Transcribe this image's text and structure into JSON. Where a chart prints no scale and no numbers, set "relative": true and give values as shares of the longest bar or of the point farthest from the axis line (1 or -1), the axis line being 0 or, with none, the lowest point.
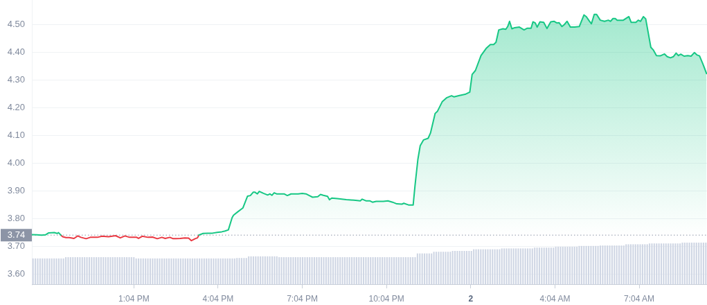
{
  "chart_data": [
    {
      "type": "area",
      "xlim": [
        "--01-01T09:26",
        "--01-02T09:29"
      ],
      "ylim": [
        3.56,
        4.59
      ],
      "xticks": [
        {
          "value": "--01-01T13:04",
          "label": "1:04 PM"
        },
        {
          "value": "--01-01T16:04",
          "label": "4:04 PM"
        },
        {
          "value": "--01-01T19:04",
          "label": "7:04 PM"
        },
        {
          "value": "--01-01T22:04",
          "label": "10:04 PM"
        },
        {
          "value": "--01-02T01:04",
          "label": "2"
        },
        {
          "value": "--01-02T04:04",
          "label": "4:04 AM"
        },
        {
          "value": "--01-02T07:04",
          "label": "7:04 AM"
        }
      ],
      "yticks": [
        {
          "value": 3.6,
          "label": "3.60"
        },
        {
          "value": 3.7,
          "label": "3.70"
        },
        {
          "value": 3.8,
          "label": "3.80"
        },
        {
          "value": 3.9,
          "label": "3.90"
        },
        {
          "value": 4.0,
          "label": "4.00"
        },
        {
          "value": 4.1,
          "label": "4.10"
        },
        {
          "value": 4.2,
          "label": "4.20"
        },
        {
          "value": 4.3,
          "label": "4.30"
        },
        {
          "value": 4.4,
          "label": "4.40"
        },
        {
          "value": 4.5,
          "label": "4.50"
        }
      ],
      "grid": "y",
      "ref_lines": [
        {
          "axis": "y",
          "value": 3.74,
          "label": "3.74",
          "color": "#8c94a6",
          "line_style": "dotted"
        }
      ],
      "series": [
        {
          "color": "#16c784",
          "x": [
            "--01-01T09:26",
            "--01-01T09:37",
            "--01-01T09:47",
            "--01-01T09:55",
            "--01-01T10:02",
            "--01-01T10:14",
            "--01-01T10:20",
            "--01-01T10:23",
            "--01-01T10:28",
            "--01-01T12:54",
            "--01-01T15:23",
            "--01-01T15:32",
            "--01-01T15:42",
            "--01-01T15:52",
            "--01-01T16:02",
            "--01-01T16:12",
            "--01-01T16:19",
            "--01-01T16:26",
            "--01-01T16:34",
            "--01-01T16:37",
            "--01-01T16:46",
            "--01-01T16:57",
            "--01-01T17:07",
            "--01-01T17:13",
            "--01-01T17:19",
            "--01-01T17:23",
            "--01-01T17:28",
            "--01-01T17:32",
            "--01-01T17:41",
            "--01-01T17:50",
            "--01-01T17:55",
            "--01-01T17:59",
            "--01-01T18:04",
            "--01-01T18:09",
            "--01-01T18:15",
            "--01-01T18:25",
            "--01-01T18:32",
            "--01-01T18:40",
            "--01-01T18:55",
            "--01-01T19:04",
            "--01-01T19:12",
            "--01-01T19:19",
            "--01-01T19:26",
            "--01-01T19:37",
            "--01-01T19:43",
            "--01-01T19:49",
            "--01-01T19:58",
            "--01-01T20:02",
            "--01-01T20:07",
            "--01-01T20:19",
            "--01-01T20:38",
            "--01-01T20:58",
            "--01-01T21:08",
            "--01-01T21:12",
            "--01-01T21:20",
            "--01-01T21:28",
            "--01-01T21:34",
            "--01-01T21:42",
            "--01-01T21:57",
            "--01-01T22:07",
            "--01-01T22:17",
            "--01-01T22:26",
            "--01-01T22:37",
            "--01-01T22:41",
            "--01-01T22:51",
            "--01-01T23:01",
            "--01-01T23:05",
            "--01-01T23:11",
            "--01-01T23:16",
            "--01-01T23:23",
            "--01-01T23:33",
            "--01-01T23:38",
            "--01-01T23:48",
            "--01-01T23:53",
            "--01-02T00:03",
            "--01-02T00:13",
            "--01-02T00:23",
            "--01-02T00:28",
            "--01-02T00:40",
            "--01-02T00:52",
            "--01-02T01:02",
            "--01-02T01:07",
            "--01-02T01:14",
            "--01-02T01:26",
            "--01-02T01:37",
            "--01-02T01:46",
            "--01-02T01:53",
            "--01-02T01:58",
            "--01-02T02:04",
            "--01-02T02:13",
            "--01-02T02:19",
            "--01-02T02:23",
            "--01-02T02:27",
            "--01-02T02:32",
            "--01-02T02:38",
            "--01-02T02:48",
            "--01-02T02:58",
            "--01-02T03:05",
            "--01-02T03:13",
            "--01-02T03:17",
            "--01-02T03:22",
            "--01-02T03:26",
            "--01-02T03:32",
            "--01-02T03:40",
            "--01-02T03:47",
            "--01-02T03:55",
            "--01-02T04:02",
            "--01-02T04:08",
            "--01-02T04:13",
            "--01-02T04:19",
            "--01-02T04:24",
            "--01-02T04:30",
            "--01-02T04:37",
            "--01-02T04:46",
            "--01-02T04:56",
            "--01-02T05:06",
            "--01-02T05:11",
            "--01-02T05:17",
            "--01-02T05:22",
            "--01-02T05:28",
            "--01-02T05:33",
            "--01-02T05:41",
            "--01-02T05:50",
            "--01-02T05:58",
            "--01-02T06:03",
            "--01-02T06:08",
            "--01-02T06:13",
            "--01-02T06:17",
            "--01-02T06:30",
            "--01-02T06:42",
            "--01-02T06:47",
            "--01-02T06:57",
            "--01-02T07:02",
            "--01-02T07:07",
            "--01-02T07:13",
            "--01-02T07:18",
            "--01-02T07:29",
            "--01-02T07:34",
            "--01-02T07:41",
            "--01-02T07:49",
            "--01-02T07:58",
            "--01-02T08:04",
            "--01-02T08:11",
            "--01-02T08:17",
            "--01-02T08:23",
            "--01-02T08:28",
            "--01-02T08:33",
            "--01-02T08:40",
            "--01-02T08:48",
            "--01-02T08:55",
            "--01-02T09:02",
            "--01-02T09:08",
            "--01-02T09:13",
            "--01-02T09:20",
            "--01-02T09:28"
          ],
          "values": [
            3.742,
            3.741,
            3.74,
            3.741,
            3.748,
            3.749,
            3.746,
            3.749,
            3.74,
            null,
            3.74,
            3.746,
            3.747,
            3.747,
            3.75,
            3.752,
            3.755,
            3.759,
            3.803,
            3.812,
            3.824,
            3.838,
            3.881,
            3.883,
            3.895,
            3.895,
            3.889,
            3.898,
            3.891,
            3.885,
            3.889,
            3.884,
            3.893,
            3.889,
            3.889,
            3.889,
            3.883,
            3.889,
            3.889,
            3.891,
            3.889,
            3.883,
            3.877,
            3.879,
            3.887,
            3.884,
            3.88,
            3.868,
            3.874,
            3.872,
            3.868,
            3.866,
            3.864,
            3.87,
            3.864,
            3.864,
            3.859,
            3.862,
            3.862,
            3.864,
            3.859,
            3.853,
            3.852,
            3.855,
            3.849,
            3.849,
            3.92,
            4.013,
            4.063,
            4.084,
            4.09,
            4.109,
            4.18,
            4.188,
            4.222,
            4.237,
            4.244,
            4.24,
            4.245,
            4.249,
            4.257,
            4.321,
            4.335,
            4.389,
            4.415,
            4.429,
            4.429,
            4.437,
            4.482,
            4.486,
            4.484,
            4.494,
            4.513,
            4.486,
            4.49,
            4.492,
            4.482,
            4.488,
            4.488,
            4.511,
            4.507,
            4.492,
            4.511,
            4.509,
            4.487,
            4.511,
            4.513,
            4.507,
            4.508,
            4.494,
            4.501,
            4.513,
            4.492,
            4.492,
            4.494,
            4.536,
            4.53,
            4.515,
            4.504,
            4.538,
            4.538,
            4.517,
            4.513,
            4.517,
            4.513,
            4.523,
            4.523,
            4.517,
            4.517,
            4.53,
            4.509,
            4.509,
            4.517,
            4.513,
            4.53,
            4.522,
            4.419,
            4.41,
            4.389,
            4.388,
            4.395,
            4.385,
            4.381,
            4.385,
            4.398,
            4.389,
            4.394,
            4.387,
            4.389,
            4.387,
            4.4,
            4.391,
            4.388,
            4.36,
            4.324
          ]
        },
        {
          "type": "line",
          "color": "#ea3943",
          "x": [
            "--01-01T10:28",
            "--01-01T10:32",
            "--01-01T10:39",
            "--01-01T10:46",
            "--01-01T10:56",
            "--01-01T11:04",
            "--01-01T11:11",
            "--01-01T11:22",
            "--01-01T11:31",
            "--01-01T11:46",
            "--01-01T11:56",
            "--01-01T12:10",
            "--01-01T12:25",
            "--01-01T12:35",
            "--01-01T12:45",
            "--01-01T12:55",
            "--01-01T13:10",
            "--01-01T13:14",
            "--01-01T13:22",
            "--01-01T13:34",
            "--01-01T13:44",
            "--01-01T13:54",
            "--01-01T14:04",
            "--01-01T14:11",
            "--01-01T14:21",
            "--01-01T14:28",
            "--01-01T14:43",
            "--01-01T14:53",
            "--01-01T15:01",
            "--01-01T15:07",
            "--01-01T15:15",
            "--01-01T15:20",
            "--01-01T15:23"
          ],
          "values": [
            3.74,
            3.734,
            3.731,
            3.731,
            3.728,
            3.737,
            3.732,
            3.727,
            3.732,
            3.732,
            3.736,
            3.734,
            3.738,
            3.73,
            3.737,
            3.732,
            3.732,
            3.728,
            3.736,
            3.732,
            3.733,
            3.727,
            3.732,
            3.728,
            3.732,
            3.727,
            3.728,
            3.73,
            3.729,
            3.72,
            3.727,
            3.73,
            3.74
          ]
        }
      ]
    },
    {
      "type": "bar",
      "relative": true,
      "tick_labels": false,
      "color": "#cfd6e4",
      "categories": [
        null,
        null,
        null,
        null,
        null,
        null,
        null,
        null,
        null,
        null,
        null,
        null,
        null,
        null,
        null,
        null,
        null,
        null,
        null,
        null,
        null,
        null,
        null,
        null,
        null,
        null,
        null,
        null,
        null,
        null,
        null,
        null,
        null,
        null,
        null,
        null,
        null,
        null,
        null,
        null,
        null,
        null,
        null,
        null,
        null,
        null,
        null,
        null,
        null,
        null,
        null,
        null,
        null,
        null,
        null,
        null,
        null,
        null,
        null,
        null,
        null,
        null,
        null,
        null,
        null,
        null,
        null,
        null,
        null,
        null,
        null,
        null,
        null,
        null,
        null,
        null,
        null,
        null,
        null,
        null,
        null,
        null,
        null,
        null,
        null,
        null,
        null,
        null,
        null,
        null,
        null,
        null,
        null,
        null,
        null,
        null,
        null,
        null,
        null,
        null,
        null,
        null,
        null,
        null,
        null,
        null,
        null,
        null,
        null,
        null,
        null,
        null,
        null,
        null,
        null,
        null,
        null,
        null,
        null,
        null,
        null,
        null,
        null,
        null,
        null,
        null,
        null,
        null,
        null,
        null,
        null,
        null,
        null,
        null,
        null,
        null,
        null,
        null,
        null,
        null,
        null,
        null,
        null,
        null,
        null,
        null,
        null,
        null,
        null,
        null,
        null,
        null,
        null,
        null,
        null,
        null,
        null,
        null,
        null,
        null,
        null,
        null,
        null,
        null,
        null,
        null,
        null,
        null,
        null,
        null,
        null,
        null,
        null,
        null,
        null,
        null,
        null,
        null,
        null,
        null,
        null,
        null,
        null,
        null,
        null,
        null,
        null,
        null,
        null,
        null,
        null,
        null,
        null,
        null,
        null,
        null,
        null,
        null,
        null,
        null,
        null,
        null,
        null,
        null,
        null,
        null,
        null,
        null,
        null,
        null,
        null,
        null,
        null,
        null,
        null,
        null,
        null,
        null,
        null,
        null,
        null,
        null,
        null,
        null,
        null,
        null,
        null,
        null,
        null,
        null,
        null,
        null,
        null,
        null,
        null,
        null,
        null,
        null,
        null,
        null,
        null,
        null,
        null,
        null,
        null,
        null,
        null,
        null,
        null,
        null,
        null,
        null,
        null,
        null,
        null,
        null,
        null,
        null,
        null,
        null,
        null,
        null,
        null,
        null,
        null,
        null,
        null,
        null,
        null,
        null,
        null,
        null,
        null,
        null,
        null,
        null,
        null,
        null,
        null,
        null,
        null,
        null,
        null,
        null,
        null,
        null,
        null,
        null
      ],
      "values": [
        0.62,
        0.62,
        0.62,
        0.62,
        0.62,
        0.62,
        0.62,
        0.62,
        0.62,
        0.62,
        0.62,
        0.62,
        0.62,
        0.62,
        0.65,
        0.65,
        0.65,
        0.65,
        0.65,
        0.65,
        0.65,
        0.65,
        0.65,
        0.65,
        0.65,
        0.65,
        0.65,
        0.65,
        0.65,
        0.65,
        0.65,
        0.65,
        0.65,
        0.65,
        0.65,
        0.65,
        0.65,
        0.65,
        0.65,
        0.65,
        0.65,
        0.65,
        0.65,
        0.65,
        0.62,
        0.62,
        0.62,
        0.62,
        0.62,
        0.62,
        0.62,
        0.62,
        0.62,
        0.62,
        0.62,
        0.62,
        0.62,
        0.62,
        0.62,
        0.62,
        0.62,
        0.62,
        0.62,
        0.62,
        0.62,
        0.62,
        0.62,
        0.62,
        0.62,
        0.62,
        0.62,
        0.62,
        0.62,
        0.62,
        0.62,
        0.62,
        0.62,
        0.62,
        0.62,
        0.62,
        0.62,
        0.62,
        0.62,
        0.62,
        0.62,
        0.62,
        0.62,
        0.63,
        0.63,
        0.63,
        0.63,
        0.63,
        0.67,
        0.67,
        0.67,
        0.67,
        0.67,
        0.67,
        0.67,
        0.67,
        0.67,
        0.67,
        0.67,
        0.67,
        0.67,
        0.65,
        0.65,
        0.65,
        0.65,
        0.65,
        0.65,
        0.65,
        0.65,
        0.65,
        0.65,
        0.65,
        0.65,
        0.65,
        0.65,
        0.65,
        0.65,
        0.65,
        0.65,
        0.65,
        0.65,
        0.65,
        0.65,
        0.65,
        0.65,
        0.65,
        0.65,
        0.65,
        0.65,
        0.65,
        0.65,
        0.65,
        0.65,
        0.65,
        0.65,
        0.65,
        0.65,
        0.65,
        0.65,
        0.65,
        0.65,
        0.65,
        0.65,
        0.65,
        0.65,
        0.65,
        0.65,
        0.65,
        0.65,
        0.65,
        0.65,
        0.65,
        0.65,
        0.65,
        0.65,
        0.65,
        0.65,
        0.65,
        0.65,
        0.65,
        0.74,
        0.74,
        0.74,
        0.74,
        0.74,
        0.74,
        0.74,
        0.78,
        0.78,
        0.78,
        0.78,
        0.78,
        0.78,
        0.78,
        0.78,
        0.8,
        0.8,
        0.8,
        0.8,
        0.8,
        0.8,
        0.8,
        0.8,
        0.8,
        0.84,
        0.84,
        0.84,
        0.84,
        0.84,
        0.84,
        0.84,
        0.84,
        0.84,
        0.84,
        0.84,
        0.84,
        0.86,
        0.86,
        0.86,
        0.86,
        0.86,
        0.86,
        0.86,
        0.86,
        0.86,
        0.86,
        0.86,
        0.86,
        0.86,
        0.86,
        0.88,
        0.88,
        0.88,
        0.88,
        0.88,
        0.88,
        0.88,
        0.88,
        0.88,
        0.9,
        0.9,
        0.9,
        0.9,
        0.9,
        0.9,
        0.9,
        0.9,
        0.9,
        0.9,
        0.92,
        0.92,
        0.92,
        0.92,
        0.92,
        0.92,
        0.92,
        0.92,
        0.92,
        0.93,
        0.93,
        0.93,
        0.93,
        0.93,
        0.93,
        0.93,
        0.93,
        0.93,
        0.93,
        0.93,
        0.96,
        0.96,
        0.96,
        0.96,
        0.96,
        0.96,
        0.96,
        0.96,
        0.96,
        0.96,
        0.98,
        0.98,
        0.98,
        0.98,
        0.98,
        0.98,
        0.98,
        0.98,
        0.98,
        0.98,
        0.98,
        0.98,
        0.98,
        0.98,
        1,
        1,
        1,
        1,
        1,
        1,
        1,
        1,
        1,
        1,
        1
      ]
    }
  ]
}
